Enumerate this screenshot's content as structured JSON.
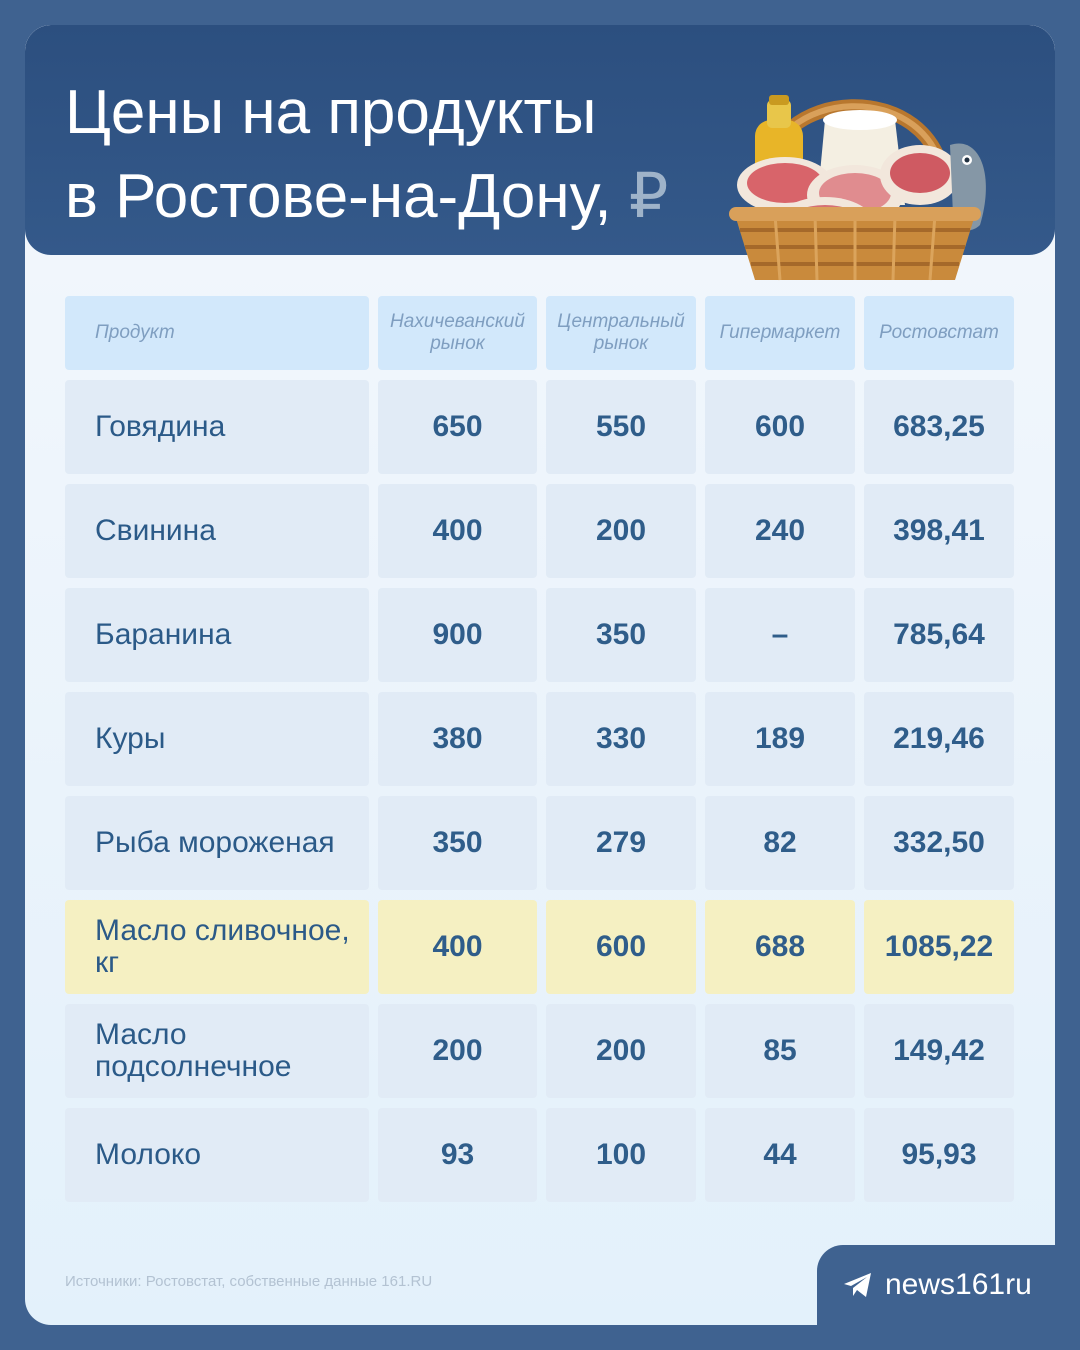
{
  "header": {
    "title_line1": "Цены на продукты",
    "title_line2": "в Ростове-на-Дону,",
    "currency_symbol": "₽"
  },
  "table": {
    "columns": [
      "Продукт",
      "Нахичеванский рынок",
      "Центральный рынок",
      "Гипермаркет",
      "Ростовстат"
    ],
    "rows": [
      {
        "product": "Говядина",
        "nakhichevan": "650",
        "central": "550",
        "hypermarket": "600",
        "rosstat": "683,25",
        "highlight": false
      },
      {
        "product": "Свинина",
        "nakhichevan": "400",
        "central": "200",
        "hypermarket": "240",
        "rosstat": "398,41",
        "highlight": false
      },
      {
        "product": "Баранина",
        "nakhichevan": "900",
        "central": "350",
        "hypermarket": "–",
        "rosstat": "785,64",
        "highlight": false
      },
      {
        "product": "Куры",
        "nakhichevan": "380",
        "central": "330",
        "hypermarket": "189",
        "rosstat": "219,46",
        "highlight": false
      },
      {
        "product": "Рыба мороженая",
        "nakhichevan": "350",
        "central": "279",
        "hypermarket": "82",
        "rosstat": "332,50",
        "highlight": false
      },
      {
        "product": "Масло сливочное, кг",
        "nakhichevan": "400",
        "central": "600",
        "hypermarket": "688",
        "rosstat": "1085,22",
        "highlight": true
      },
      {
        "product": "Масло подсолнечное",
        "nakhichevan": "200",
        "central": "200",
        "hypermarket": "85",
        "rosstat": "149,42",
        "highlight": false
      },
      {
        "product": "Молоко",
        "nakhichevan": "93",
        "central": "100",
        "hypermarket": "44",
        "rosstat": "95,93",
        "highlight": false
      }
    ]
  },
  "footer": {
    "source": "Источники: Ростовстат, собственные данные 161.RU",
    "brand_label": "news161ru",
    "brand_icon": "telegram-icon"
  },
  "colors": {
    "background": "#3f6290",
    "header": "#2c4f7f",
    "cell": "#e1ebf6",
    "header_cell": "#d2e8fb",
    "highlight_cell": "#f5f0c2",
    "value_text": "#2f5d8a"
  },
  "illustration": "basket-of-groceries"
}
